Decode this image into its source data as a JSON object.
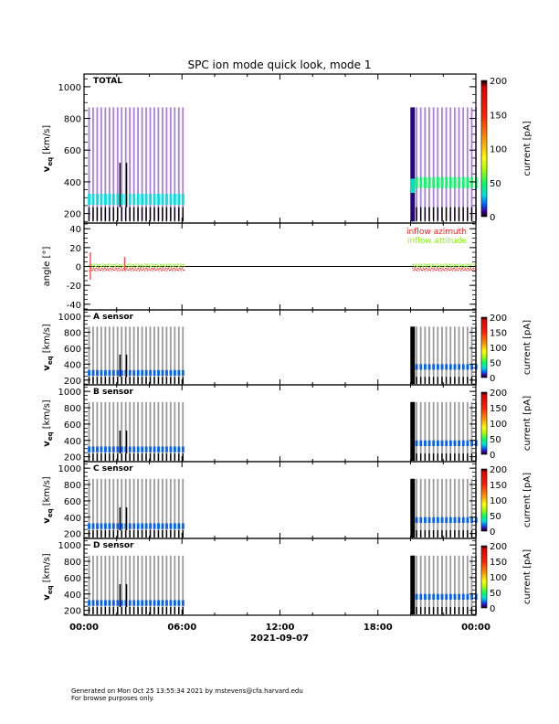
{
  "chart_data": {
    "type": "heatmap",
    "title": "SPC ion mode quick look, mode 1",
    "xlabel": "2021-09-07",
    "x_ticks": [
      "00:00",
      "06:00",
      "12:00",
      "18:00",
      "00:00"
    ],
    "x_range_hours": [
      0,
      24
    ],
    "data_intervals_hours": [
      [
        0.3,
        6.1
      ],
      [
        20.1,
        24.0
      ]
    ],
    "panels": [
      {
        "name": "TOTAL",
        "label": "TOTAL",
        "ylabel": "v_eq [km/s]",
        "ylabel_main": "v",
        "ylabel_sub": "eq",
        "ylabel_units": "[km/s]",
        "yticks": [
          200,
          400,
          600,
          800,
          1000
        ],
        "ylim": [
          140,
          1080
        ],
        "colorbar": {
          "label": "current [pA]",
          "ticks": [
            0,
            50,
            100,
            150,
            200
          ],
          "range": [
            0,
            200
          ]
        },
        "peak_speed_kms": [
          [
            0.3,
            285
          ],
          [
            6.1,
            285
          ],
          [
            20.1,
            390
          ],
          [
            24.0,
            380
          ]
        ],
        "peak_current_pA": [
          [
            0.3,
            30
          ],
          [
            6.1,
            30
          ],
          [
            20.1,
            40
          ],
          [
            24.0,
            25
          ]
        ]
      },
      {
        "name": "angle",
        "label": "",
        "ylabel": "angle [°]",
        "yticks": [
          -40,
          -20,
          0,
          20,
          40
        ],
        "ylim": [
          -46,
          46
        ],
        "legend": [
          {
            "label": "inflow azimuth",
            "color": "#ff2020"
          },
          {
            "label": "inflow attitude",
            "color": "#7fff00"
          }
        ],
        "legend_position": "top-right",
        "series": [
          {
            "name": "inflow azimuth",
            "mean_deg": -3,
            "intervals_hours": [
              [
                0.3,
                6.1
              ],
              [
                20.1,
                24.0
              ]
            ]
          },
          {
            "name": "inflow attitude",
            "mean_deg": 1,
            "intervals_hours": [
              [
                0.3,
                6.1
              ],
              [
                20.1,
                24.0
              ]
            ]
          }
        ]
      },
      {
        "name": "A sensor",
        "label": "A sensor",
        "ylabel_main": "v",
        "ylabel_sub": "eq",
        "ylabel_units": "[km/s]",
        "yticks": [
          200,
          400,
          600,
          800,
          1000
        ],
        "ylim": [
          140,
          1080
        ],
        "colorbar": {
          "label": "current [pA]",
          "ticks": [
            0,
            50,
            100,
            150,
            200
          ],
          "range": [
            0,
            200
          ]
        }
      },
      {
        "name": "B sensor",
        "label": "B sensor",
        "ylabel_main": "v",
        "ylabel_sub": "eq",
        "ylabel_units": "[km/s]",
        "yticks": [
          200,
          400,
          600,
          800,
          1000
        ],
        "ylim": [
          140,
          1080
        ],
        "colorbar": {
          "label": "current [pA]",
          "ticks": [
            0,
            50,
            100,
            150,
            200
          ],
          "range": [
            0,
            200
          ]
        }
      },
      {
        "name": "C sensor",
        "label": "C sensor",
        "ylabel_main": "v",
        "ylabel_sub": "eq",
        "ylabel_units": "[km/s]",
        "yticks": [
          200,
          400,
          600,
          800,
          1000
        ],
        "ylim": [
          140,
          1080
        ],
        "colorbar": {
          "label": "current [pA]",
          "ticks": [
            0,
            50,
            100,
            150,
            200
          ],
          "range": [
            0,
            200
          ]
        }
      },
      {
        "name": "D sensor",
        "label": "D sensor",
        "ylabel_main": "v",
        "ylabel_sub": "eq",
        "ylabel_units": "[km/s]",
        "yticks": [
          200,
          400,
          600,
          800,
          1000
        ],
        "ylim": [
          140,
          1080
        ],
        "colorbar": {
          "label": "current [pA]",
          "ticks": [
            0,
            50,
            100,
            150,
            200
          ],
          "range": [
            0,
            200
          ]
        }
      }
    ]
  },
  "footer": {
    "line1": "Generated on Mon Oct 25 13:55:34 2021 by mstevens@cfa.harvard.edu",
    "line2": "For browse purposes only."
  }
}
